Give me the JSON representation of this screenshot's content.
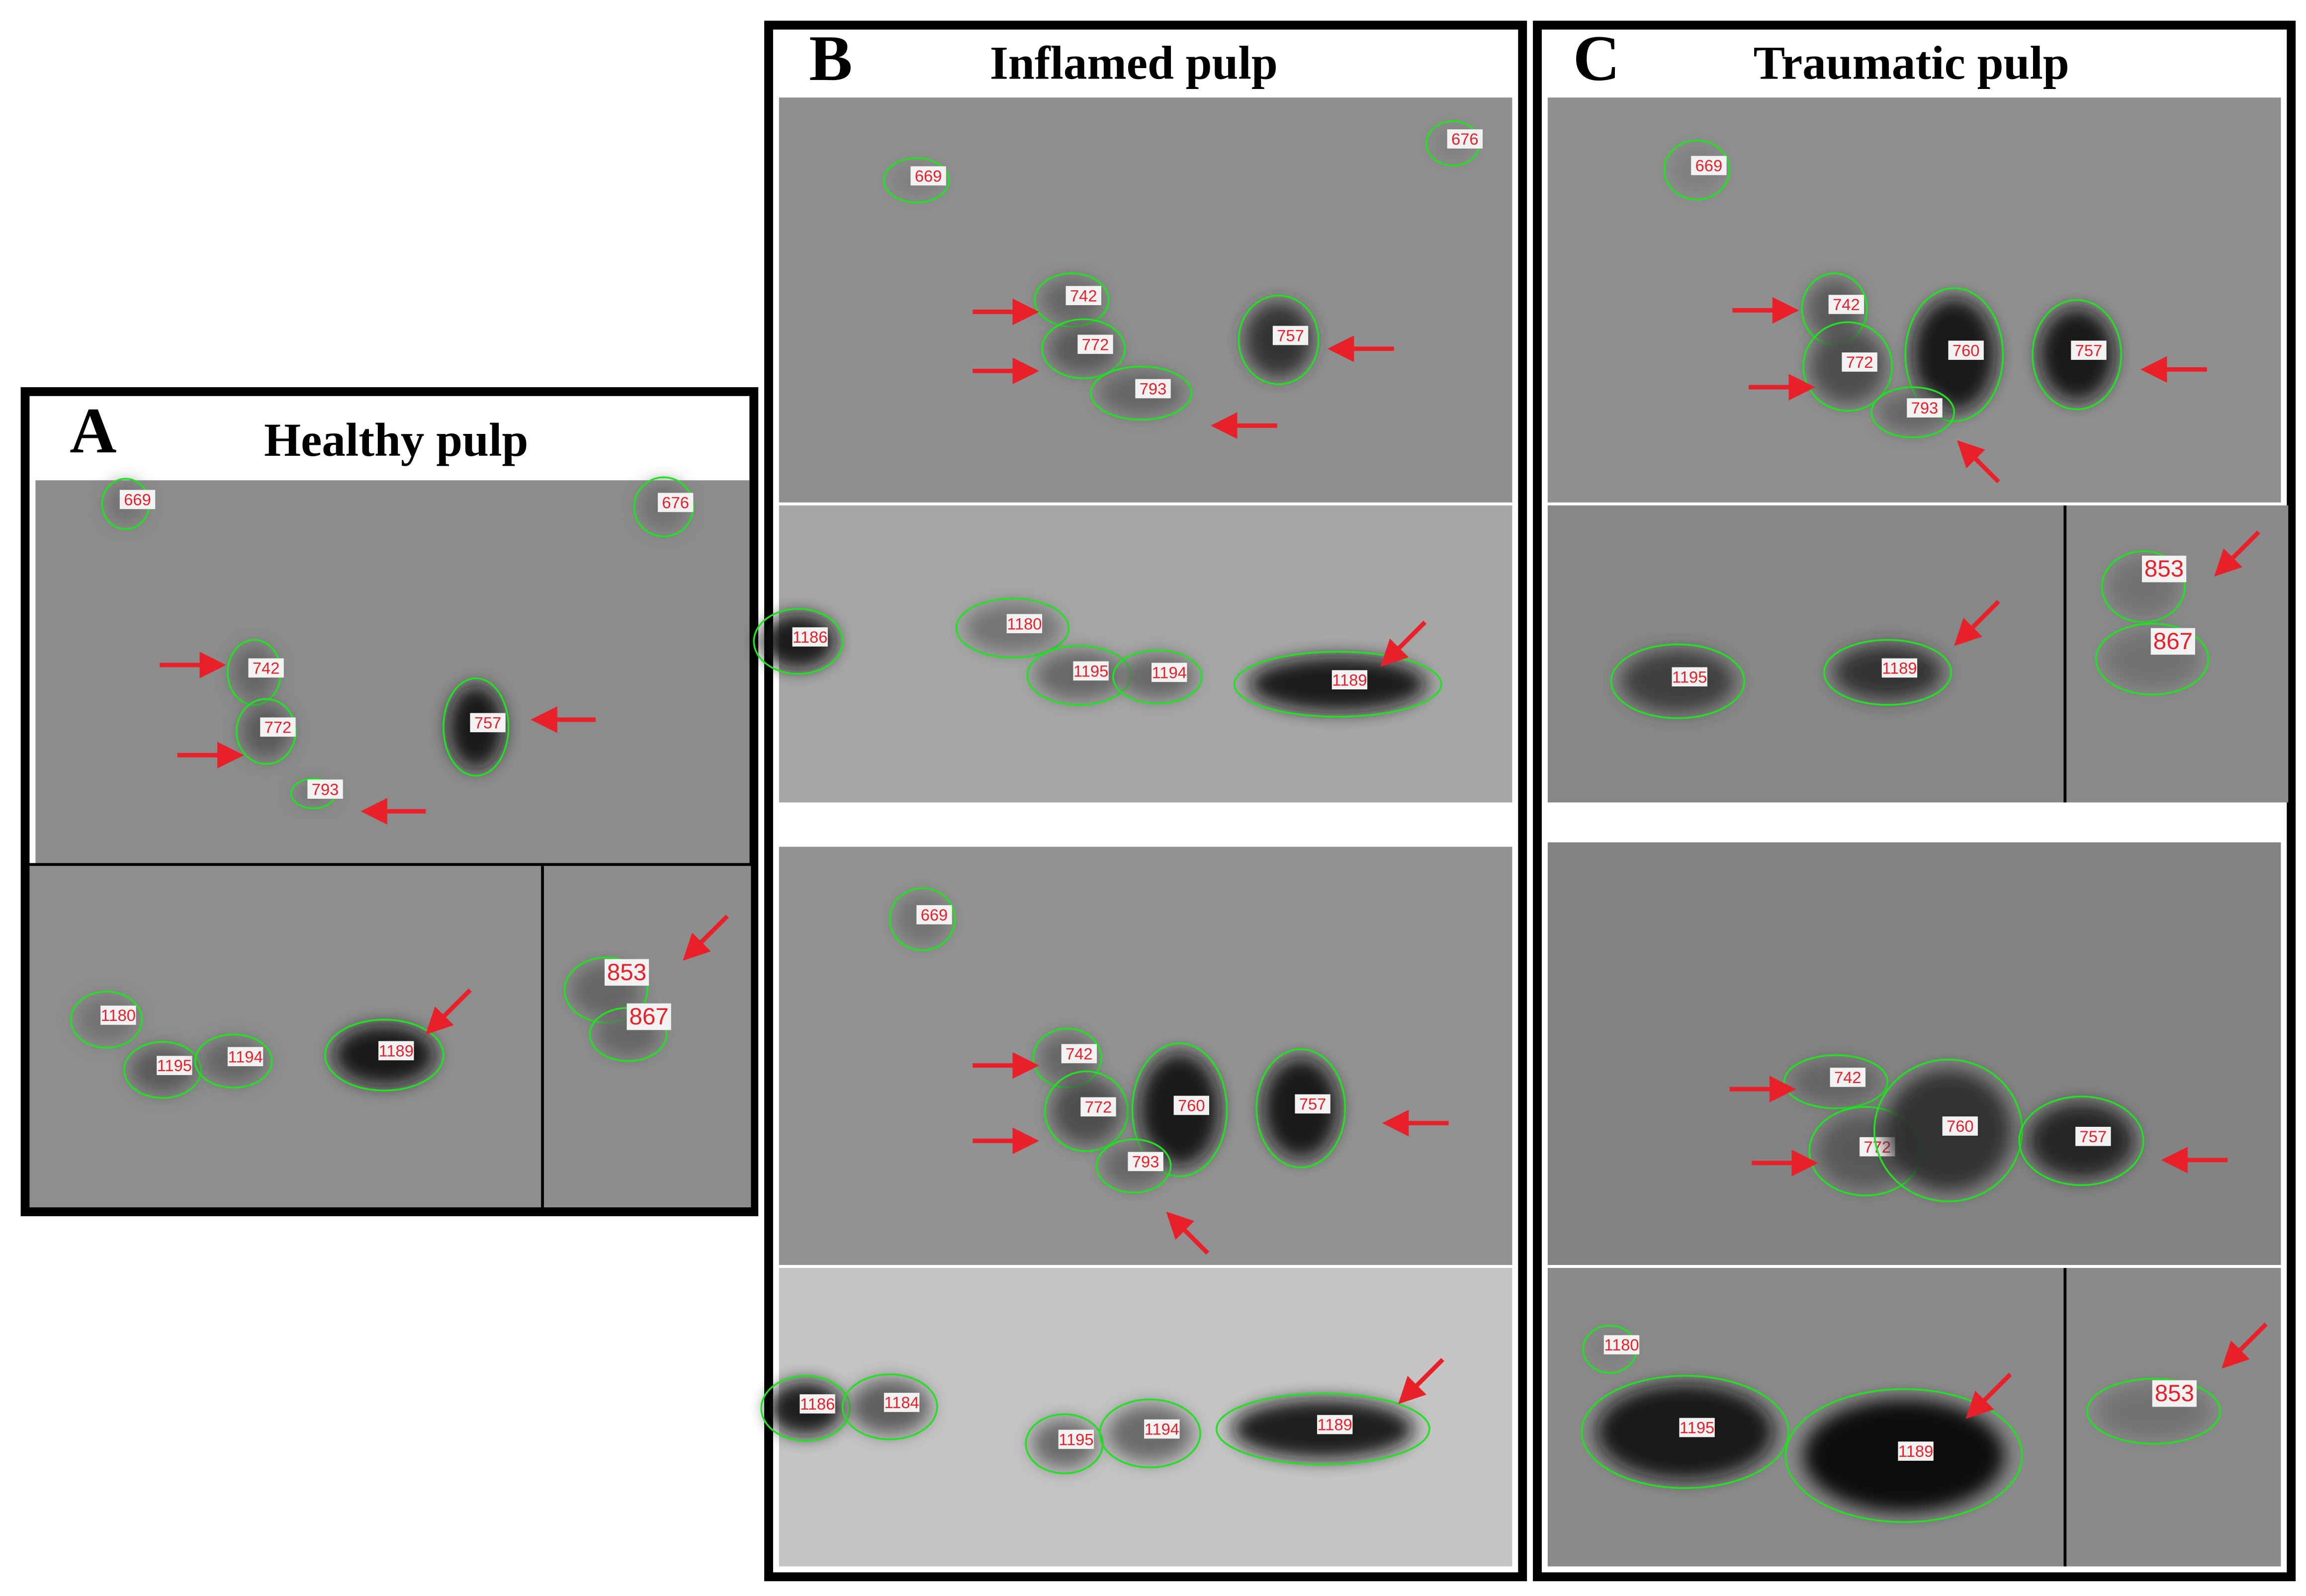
{
  "panels": [
    {
      "letter": "A",
      "title": "Healthy pulp",
      "spots": [
        "669",
        "676",
        "742",
        "772",
        "757",
        "793",
        "1180",
        "1195",
        "1194",
        "1189",
        "853",
        "867"
      ]
    },
    {
      "letter": "B",
      "title": "Inflamed pulp",
      "spots": [
        "669",
        "676",
        "742",
        "772",
        "757",
        "793",
        "1186",
        "1180",
        "1195",
        "1194",
        "1189",
        "669",
        "742",
        "772",
        "760",
        "757",
        "793",
        "1186",
        "1184",
        "1195",
        "1194",
        "1189"
      ]
    },
    {
      "letter": "C",
      "title": "Traumatic pulp",
      "spots": [
        "669",
        "742",
        "772",
        "760",
        "757",
        "793",
        "1195",
        "1189",
        "853",
        "867",
        "742",
        "772",
        "760",
        "757",
        "1180",
        "1195",
        "1189",
        "853"
      ]
    }
  ]
}
